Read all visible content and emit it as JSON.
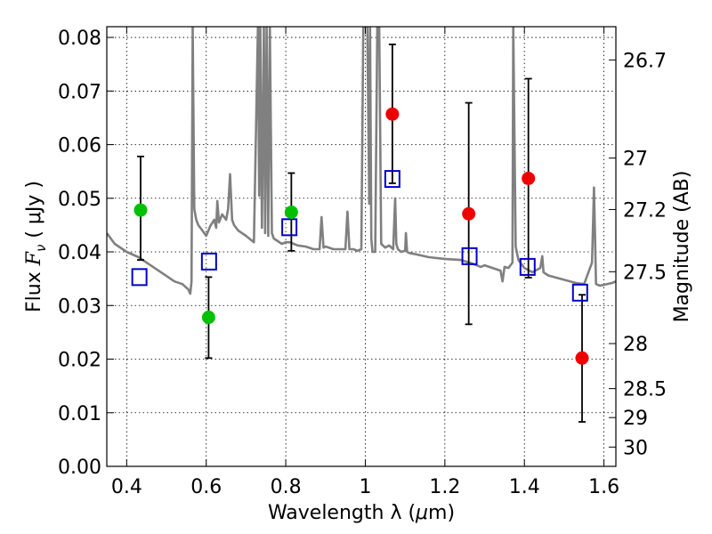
{
  "chart_data": {
    "type": "scatter",
    "xlabel_prefix": "Wavelength  λ (",
    "xlabel_unit": "μ",
    "xlabel_suffix": "m)",
    "ylabel_prefix": "Flux  ",
    "ylabel_symbol": "F",
    "ylabel_subscript": "ν",
    "ylabel_unit": "  ( μJy )",
    "y2label": "Magnitude (AB)",
    "xlim": [
      0.35,
      1.63
    ],
    "ylim": [
      0.0,
      0.082
    ],
    "grid": true,
    "xticks": [
      0.4,
      0.6,
      0.8,
      1.0,
      1.2,
      1.4,
      1.6
    ],
    "xtick_labels": [
      "0.4",
      "0.6",
      "0.8",
      "1",
      "1.2",
      "1.4",
      "1.6"
    ],
    "yticks": [
      0.0,
      0.01,
      0.02,
      0.03,
      0.04,
      0.05,
      0.06,
      0.07,
      0.08
    ],
    "ytick_labels": [
      "0.00",
      "0.01",
      "0.02",
      "0.03",
      "0.04",
      "0.05",
      "0.06",
      "0.07",
      "0.08"
    ],
    "right_ticks": [
      {
        "label": "26.7",
        "flux": 0.0758
      },
      {
        "label": "27",
        "flux": 0.0575
      },
      {
        "label": "27.2",
        "flux": 0.0479
      },
      {
        "label": "27.5",
        "flux": 0.0363
      },
      {
        "label": "28",
        "flux": 0.0229
      },
      {
        "label": "28.5",
        "flux": 0.0145
      },
      {
        "label": "29",
        "flux": 0.0091
      },
      {
        "label": "30",
        "flux": 0.0036
      }
    ],
    "colors": {
      "model": "#808080",
      "green": "#00c000",
      "red": "#ee0000",
      "errorbar": "#000000",
      "square": "#0000cc"
    },
    "series": [
      {
        "name": "Model SED",
        "kind": "line",
        "x": [
          0.35,
          0.37,
          0.4,
          0.43,
          0.44,
          0.46,
          0.48,
          0.5,
          0.52,
          0.54,
          0.555,
          0.56,
          0.563,
          0.566,
          0.57,
          0.575,
          0.58,
          0.59,
          0.6,
          0.61,
          0.62,
          0.625,
          0.628,
          0.632,
          0.64,
          0.65,
          0.655,
          0.66,
          0.665,
          0.67,
          0.68,
          0.7,
          0.72,
          0.73,
          0.733,
          0.736,
          0.74,
          0.745,
          0.748,
          0.752,
          0.756,
          0.76,
          0.765,
          0.77,
          0.78,
          0.79,
          0.8,
          0.81,
          0.82,
          0.83,
          0.85,
          0.87,
          0.885,
          0.89,
          0.895,
          0.9,
          0.92,
          0.94,
          0.95,
          0.955,
          0.96,
          0.97,
          0.98,
          0.99,
          0.995,
          1.0,
          1.005,
          1.01,
          1.012,
          1.015,
          1.018,
          1.025,
          1.03,
          1.035,
          1.04,
          1.05,
          1.06,
          1.07,
          1.075,
          1.078,
          1.082,
          1.09,
          1.1,
          1.102,
          1.105,
          1.11,
          1.13,
          1.16,
          1.2,
          1.24,
          1.27,
          1.29,
          1.3,
          1.32,
          1.34,
          1.345,
          1.35,
          1.36,
          1.37,
          1.372,
          1.378,
          1.385,
          1.4,
          1.42,
          1.44,
          1.445,
          1.448,
          1.46,
          1.5,
          1.53,
          1.55,
          1.57,
          1.575,
          1.58,
          1.59,
          1.62,
          1.63
        ],
        "y": [
          0.0435,
          0.0415,
          0.04,
          0.039,
          0.0385,
          0.0375,
          0.0365,
          0.0355,
          0.0345,
          0.034,
          0.033,
          0.0322,
          0.0345,
          0.082,
          0.048,
          0.046,
          0.045,
          0.044,
          0.043,
          0.0448,
          0.046,
          0.0445,
          0.0495,
          0.0455,
          0.047,
          0.046,
          0.048,
          0.0545,
          0.046,
          0.045,
          0.044,
          0.043,
          0.0418,
          0.082,
          0.0505,
          0.082,
          0.0445,
          0.082,
          0.0435,
          0.082,
          0.043,
          0.082,
          0.0435,
          0.0425,
          0.042,
          0.0415,
          0.0418,
          0.0418,
          0.0415,
          0.0412,
          0.041,
          0.0405,
          0.0405,
          0.0465,
          0.0408,
          0.041,
          0.0405,
          0.0405,
          0.0405,
          0.0475,
          0.0405,
          0.0405,
          0.0402,
          0.0405,
          0.082,
          0.082,
          0.082,
          0.049,
          0.082,
          0.0425,
          0.04,
          0.04,
          0.082,
          0.082,
          0.0415,
          0.0408,
          0.0412,
          0.0405,
          0.05,
          0.0415,
          0.0405,
          0.04,
          0.0402,
          0.0435,
          0.04,
          0.0398,
          0.0395,
          0.039,
          0.0387,
          0.0385,
          0.0378,
          0.0372,
          0.0375,
          0.037,
          0.0365,
          0.0345,
          0.0372,
          0.037,
          0.038,
          0.082,
          0.041,
          0.0385,
          0.037,
          0.0362,
          0.037,
          0.0392,
          0.0362,
          0.0356,
          0.0348,
          0.0342,
          0.034,
          0.038,
          0.052,
          0.034,
          0.0337,
          0.0342,
          0.0345
        ]
      },
      {
        "name": "Photometry (green)",
        "kind": "points",
        "points": [
          {
            "x": 0.435,
            "y": 0.0478,
            "ylo": 0.0385,
            "yhi": 0.0578
          },
          {
            "x": 0.606,
            "y": 0.0278,
            "ylo": 0.0202,
            "yhi": 0.0353
          },
          {
            "x": 0.814,
            "y": 0.0474,
            "ylo": 0.0402,
            "yhi": 0.0547
          }
        ]
      },
      {
        "name": "Photometry (red)",
        "kind": "points",
        "points": [
          {
            "x": 1.068,
            "y": 0.0657,
            "ylo": 0.0528,
            "yhi": 0.0787
          },
          {
            "x": 1.26,
            "y": 0.0471,
            "ylo": 0.0265,
            "yhi": 0.0678
          },
          {
            "x": 1.41,
            "y": 0.0537,
            "ylo": 0.0352,
            "yhi": 0.0723
          },
          {
            "x": 1.545,
            "y": 0.0202,
            "ylo": 0.0083,
            "yhi": 0.032
          }
        ]
      },
      {
        "name": "Model synthetic photometry",
        "kind": "squares",
        "points": [
          {
            "x": 0.432,
            "y": 0.0353
          },
          {
            "x": 0.607,
            "y": 0.0382
          },
          {
            "x": 0.809,
            "y": 0.0446
          },
          {
            "x": 1.068,
            "y": 0.0536
          },
          {
            "x": 1.262,
            "y": 0.0392
          },
          {
            "x": 1.408,
            "y": 0.0372
          },
          {
            "x": 1.54,
            "y": 0.0324
          }
        ]
      }
    ]
  }
}
